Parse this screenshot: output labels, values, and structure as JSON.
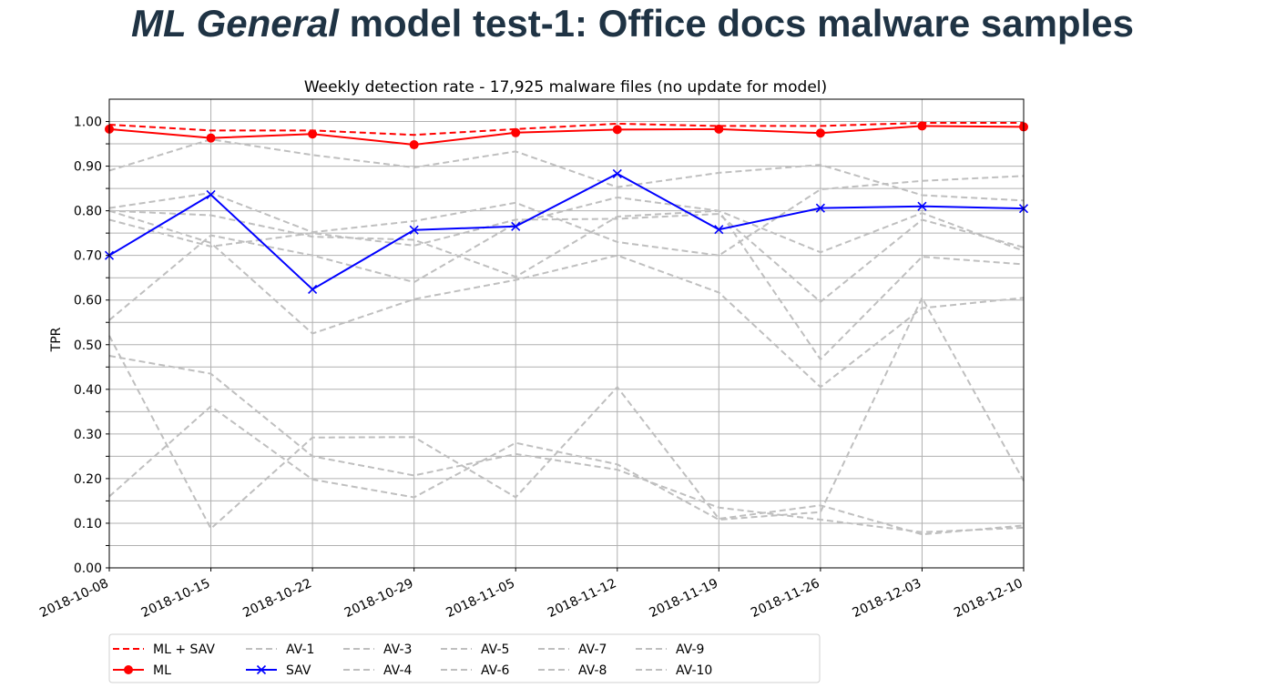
{
  "slide": {
    "title_italic": "ML General",
    "title_rest": " model test-1: Office docs malware samples"
  },
  "chart_data": {
    "type": "line",
    "title": "Weekly detection rate - 17,925 malware files (no update for model)",
    "xlabel": "",
    "ylabel": "TPR",
    "categories": [
      "2018-10-08",
      "2018-10-15",
      "2018-10-22",
      "2018-10-29",
      "2018-11-05",
      "2018-11-12",
      "2018-11-19",
      "2018-11-26",
      "2018-12-03",
      "2018-12-10"
    ],
    "ylim": [
      0,
      1.05
    ],
    "yticks": [
      "0.00",
      "0.10",
      "0.20",
      "0.30",
      "0.40",
      "0.50",
      "0.60",
      "0.70",
      "0.80",
      "0.90",
      "1.00"
    ],
    "grid": true,
    "legend_position": "bottom-left",
    "series": [
      {
        "name": "ML + SAV",
        "color": "#ff0000",
        "dash": "dashed",
        "marker": "none",
        "values": [
          0.993,
          0.98,
          0.98,
          0.97,
          0.983,
          0.995,
          0.99,
          0.99,
          0.997,
          0.997
        ]
      },
      {
        "name": "ML",
        "color": "#ff0000",
        "dash": "solid",
        "marker": "circle",
        "values": [
          0.983,
          0.963,
          0.972,
          0.948,
          0.975,
          0.982,
          0.983,
          0.974,
          0.99,
          0.988
        ]
      },
      {
        "name": "AV-1",
        "color": "#bfbfbf",
        "dash": "dashed",
        "marker": "none",
        "values": [
          0.89,
          0.96,
          0.925,
          0.897,
          0.933,
          0.853,
          0.885,
          0.903,
          0.835,
          0.823
        ]
      },
      {
        "name": "SAV",
        "color": "#0000ff",
        "dash": "solid",
        "marker": "x",
        "values": [
          0.7,
          0.836,
          0.624,
          0.757,
          0.765,
          0.883,
          0.758,
          0.806,
          0.81,
          0.805
        ]
      },
      {
        "name": "AV-3",
        "color": "#bfbfbf",
        "dash": "dashed",
        "marker": "none",
        "values": [
          0.806,
          0.84,
          0.752,
          0.777,
          0.818,
          0.73,
          0.7,
          0.848,
          0.867,
          0.878
        ]
      },
      {
        "name": "AV-4",
        "color": "#bfbfbf",
        "dash": "dashed",
        "marker": "none",
        "values": [
          0.8,
          0.79,
          0.742,
          0.735,
          0.652,
          0.787,
          0.8,
          0.707,
          0.795,
          0.71
        ]
      },
      {
        "name": "AV-5",
        "color": "#bfbfbf",
        "dash": "dashed",
        "marker": "none",
        "values": [
          0.78,
          0.72,
          0.75,
          0.722,
          0.78,
          0.782,
          0.793,
          0.596,
          0.78,
          0.718
        ]
      },
      {
        "name": "AV-6",
        "color": "#bfbfbf",
        "dash": "dashed",
        "marker": "none",
        "values": [
          0.555,
          0.745,
          0.7,
          0.64,
          0.772,
          0.83,
          0.8,
          0.467,
          0.697,
          0.68
        ]
      },
      {
        "name": "AV-7",
        "color": "#bfbfbf",
        "dash": "dashed",
        "marker": "none",
        "values": [
          0.8,
          0.728,
          0.525,
          0.602,
          0.645,
          0.7,
          0.617,
          0.405,
          0.582,
          0.605
        ]
      },
      {
        "name": "AV-8",
        "color": "#bfbfbf",
        "dash": "dashed",
        "marker": "none",
        "values": [
          0.475,
          0.435,
          0.25,
          0.207,
          0.255,
          0.22,
          0.135,
          0.108,
          0.08,
          0.09
        ]
      },
      {
        "name": "AV-9",
        "color": "#bfbfbf",
        "dash": "dashed",
        "marker": "none",
        "values": [
          0.52,
          0.088,
          0.292,
          0.293,
          0.158,
          0.405,
          0.11,
          0.14,
          0.075,
          0.095
        ]
      },
      {
        "name": "AV-10",
        "color": "#bfbfbf",
        "dash": "dashed",
        "marker": "none",
        "values": [
          0.16,
          0.362,
          0.198,
          0.158,
          0.28,
          0.232,
          0.108,
          0.125,
          0.605,
          0.195
        ]
      }
    ]
  }
}
